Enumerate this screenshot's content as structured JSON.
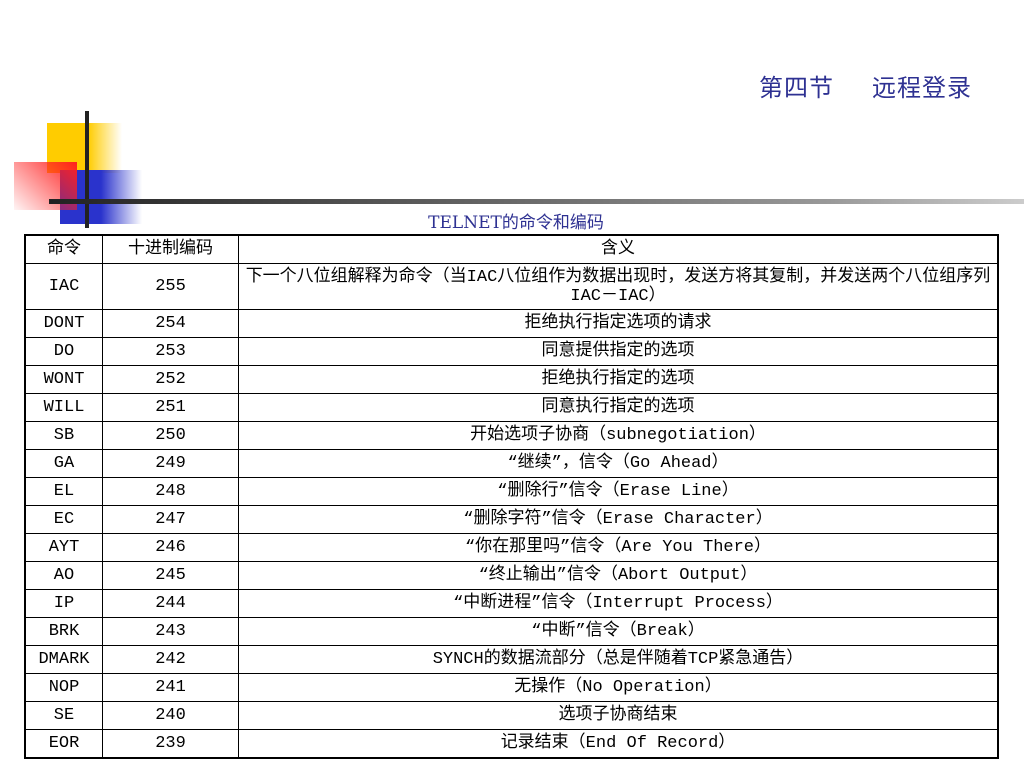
{
  "slide": {
    "section": "第四节",
    "title": "远程登录",
    "caption": "TELNET的命令和编码"
  },
  "table": {
    "headers": [
      "命令",
      "十进制编码",
      "含义"
    ],
    "rows": [
      [
        "IAC",
        "255",
        "下一个八位组解释为命令（当IAC八位组作为数据出现时，发送方将其复制，并发送两个八位组序列IAC－IAC）"
      ],
      [
        "DONT",
        "254",
        "拒绝执行指定选项的请求"
      ],
      [
        "DO",
        "253",
        "同意提供指定的选项"
      ],
      [
        "WONT",
        "252",
        "拒绝执行指定的选项"
      ],
      [
        "WILL",
        "251",
        "同意执行指定的选项"
      ],
      [
        "SB",
        "250",
        "开始选项子协商（subnegotiation）"
      ],
      [
        "GA",
        "249",
        "“继续”，信令（Go Ahead）"
      ],
      [
        "EL",
        "248",
        "“删除行”信令（Erase Line）"
      ],
      [
        "EC",
        "247",
        "“删除字符”信令（Erase Character）"
      ],
      [
        "AYT",
        "246",
        "“你在那里吗”信令（Are You There）"
      ],
      [
        "AO",
        "245",
        "“终止输出”信令（Abort Output）"
      ],
      [
        "IP",
        "244",
        "“中断进程”信令（Interrupt Process）"
      ],
      [
        "BRK",
        "243",
        "“中断”信令（Break）"
      ],
      [
        "DMARK",
        "242",
        "SYNCH的数据流部分（总是伴随着TCP紧急通告）"
      ],
      [
        "NOP",
        "241",
        "无操作（No Operation）"
      ],
      [
        "SE",
        "240",
        "选项子协商结束"
      ],
      [
        "EOR",
        "239",
        "记录结束（End Of Record）"
      ]
    ]
  },
  "colors": {
    "title": "#2e3192",
    "yellow": "#ffcc00",
    "blue": "#2a33cc",
    "red": "#ff2020"
  }
}
